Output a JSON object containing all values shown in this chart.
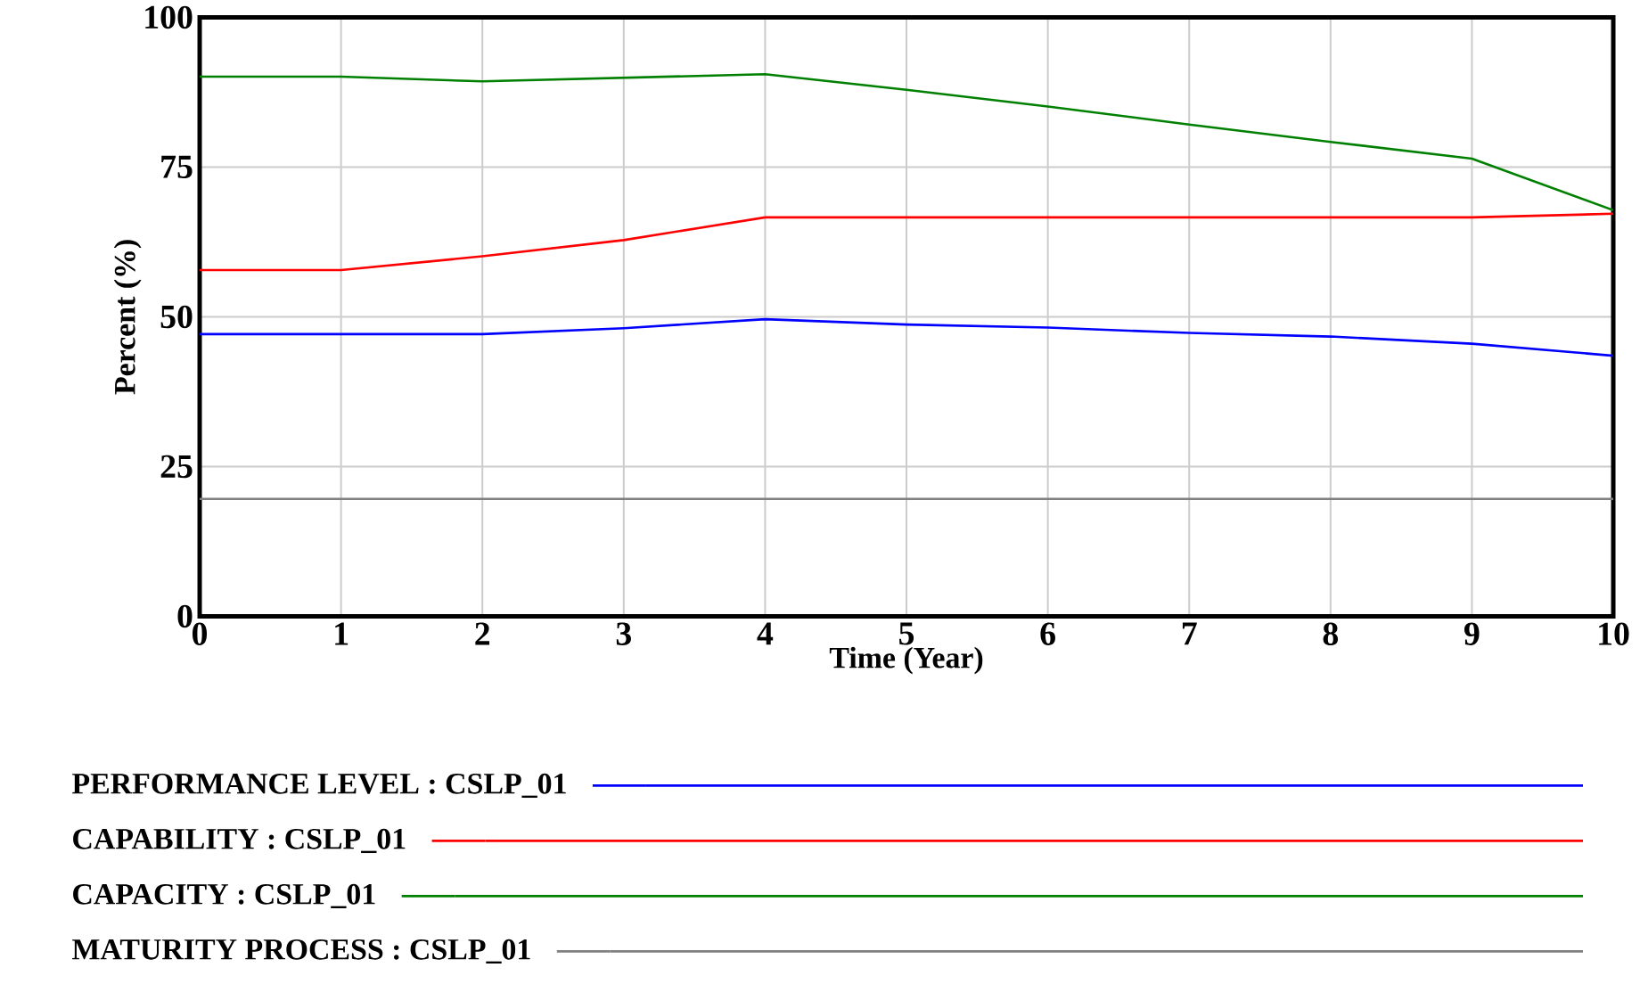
{
  "chart_data": {
    "type": "line",
    "xlabel": "Time (Year)",
    "ylabel": "Percent (%)",
    "x": [
      0,
      1,
      2,
      3,
      4,
      5,
      6,
      7,
      8,
      9,
      10
    ],
    "series": [
      {
        "name": "PERFORMANCE LEVEL : CSLP_01",
        "color": "#0000ff",
        "values": [
          47.1,
          47.1,
          47.1,
          48.1,
          49.6,
          48.7,
          48.2,
          47.3,
          46.7,
          45.5,
          43.5
        ]
      },
      {
        "name": "CAPABILITY : CSLP_01",
        "color": "#ff0000",
        "values": [
          57.8,
          57.8,
          60.1,
          62.8,
          66.6,
          66.6,
          66.6,
          66.6,
          66.6,
          66.6,
          67.2
        ]
      },
      {
        "name": "CAPACITY : CSLP_01",
        "color": "#008000",
        "values": [
          90.1,
          90.1,
          89.3,
          89.9,
          90.5,
          87.9,
          85.1,
          82.1,
          79.2,
          76.4,
          67.8
        ]
      },
      {
        "name": "MATURITY PROCESS : CSLP_01",
        "color": "#808080",
        "values": [
          19.6,
          19.6,
          19.6,
          19.6,
          19.6,
          19.6,
          19.6,
          19.6,
          19.6,
          19.6,
          19.6
        ]
      }
    ],
    "xlim": [
      0,
      10
    ],
    "xticks": [
      0,
      1,
      2,
      3,
      4,
      5,
      6,
      7,
      8,
      9,
      10
    ],
    "ylim": [
      0,
      100
    ],
    "yticks": [
      0,
      25,
      50,
      75,
      100
    ],
    "grid": true,
    "legend": "bottom",
    "line_style": "solid"
  }
}
